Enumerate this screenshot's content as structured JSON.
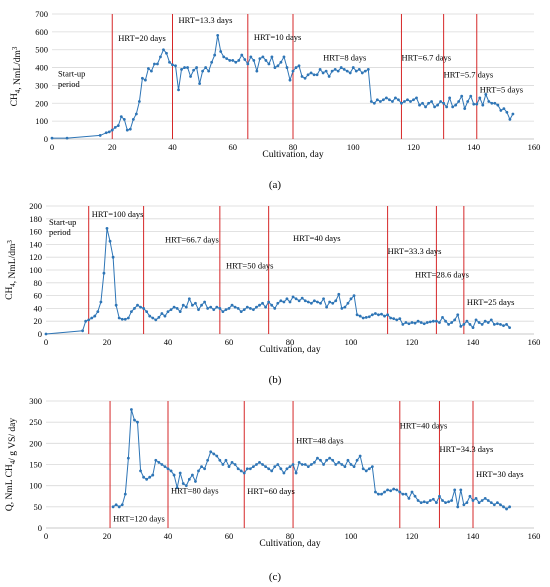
{
  "chart_data": [
    {
      "type": "line",
      "panel_label": "(a)",
      "xlabel": "Cultivation, day",
      "ylabel": "CH4, NmL/dm3",
      "xlim": [
        0,
        160
      ],
      "xticks": [
        0,
        20,
        40,
        60,
        80,
        100,
        120,
        140,
        160
      ],
      "ylim": [
        0,
        700
      ],
      "yticks": [
        0,
        100,
        200,
        300,
        400,
        500,
        600,
        700
      ],
      "grid": "horizontal",
      "color": "#2e75b6",
      "vlines": [
        20,
        40,
        65,
        80,
        116,
        130,
        141
      ],
      "annotations": [
        {
          "text": "Start-up",
          "x": 2,
          "y": 350
        },
        {
          "text": "period",
          "x": 2,
          "y": 290
        },
        {
          "text": "HRT=20 days",
          "x": 22,
          "y": 550
        },
        {
          "text": "HRT=13.3 days",
          "x": 42,
          "y": 650
        },
        {
          "text": "HRT=10 days",
          "x": 67,
          "y": 555
        },
        {
          "text": "HRT=8 days",
          "x": 90,
          "y": 440
        },
        {
          "text": "HRT=6.7 days",
          "x": 116,
          "y": 440
        },
        {
          "text": "HRT=5.7 days",
          "x": 130,
          "y": 345
        },
        {
          "text": "HRT=5 days",
          "x": 142,
          "y": 260
        }
      ],
      "x": [
        0,
        5,
        16,
        18,
        19,
        20,
        21,
        22,
        23,
        24,
        25,
        26,
        27,
        28,
        29,
        30,
        31,
        32,
        33,
        34,
        35,
        36,
        37,
        38,
        39,
        40,
        41,
        42,
        43,
        44,
        45,
        46,
        47,
        48,
        49,
        50,
        51,
        52,
        53,
        54,
        55,
        56,
        57,
        58,
        59,
        60,
        61,
        62,
        63,
        64,
        65,
        66,
        67,
        68,
        69,
        70,
        71,
        72,
        73,
        74,
        75,
        76,
        77,
        78,
        79,
        80,
        81,
        82,
        83,
        84,
        85,
        86,
        87,
        88,
        89,
        90,
        91,
        92,
        93,
        94,
        95,
        96,
        97,
        98,
        99,
        100,
        101,
        102,
        103,
        104,
        105,
        106,
        107,
        108,
        109,
        110,
        111,
        112,
        113,
        114,
        115,
        116,
        117,
        118,
        119,
        120,
        121,
        122,
        123,
        124,
        125,
        126,
        127,
        128,
        129,
        130,
        131,
        132,
        133,
        134,
        135,
        136,
        137,
        138,
        139,
        140,
        141,
        142,
        143,
        144,
        145,
        146,
        147,
        148,
        149,
        150,
        151,
        152,
        153
      ],
      "y": [
        5,
        5,
        20,
        35,
        40,
        50,
        65,
        75,
        125,
        110,
        50,
        55,
        110,
        140,
        210,
        340,
        330,
        395,
        380,
        420,
        420,
        460,
        500,
        480,
        430,
        415,
        410,
        275,
        390,
        400,
        400,
        350,
        385,
        400,
        310,
        380,
        400,
        380,
        430,
        470,
        580,
        490,
        460,
        450,
        440,
        440,
        430,
        440,
        470,
        445,
        420,
        460,
        440,
        380,
        450,
        460,
        440,
        420,
        460,
        400,
        410,
        430,
        460,
        400,
        330,
        380,
        400,
        410,
        350,
        340,
        360,
        370,
        360,
        360,
        390,
        370,
        380,
        350,
        380,
        390,
        380,
        400,
        390,
        380,
        370,
        400,
        380,
        390,
        370,
        380,
        390,
        210,
        200,
        220,
        210,
        220,
        230,
        220,
        210,
        230,
        220,
        200,
        210,
        220,
        210,
        220,
        230,
        190,
        200,
        180,
        200,
        210,
        180,
        190,
        210,
        200,
        180,
        230,
        180,
        190,
        210,
        240,
        170,
        210,
        240,
        195,
        195,
        230,
        190,
        250,
        210,
        200,
        200,
        190,
        160,
        170,
        150,
        110,
        140
      ]
    },
    {
      "type": "line",
      "panel_label": "(b)",
      "xlabel": "Cultivation, day",
      "ylabel": "CH4, NmL/dm3",
      "xlim": [
        0,
        160
      ],
      "xticks": [
        0,
        20,
        40,
        60,
        80,
        100,
        120,
        140,
        160
      ],
      "ylim": [
        0,
        200
      ],
      "yticks": [
        0,
        20,
        40,
        60,
        80,
        100,
        120,
        140,
        160,
        180,
        200
      ],
      "grid": "horizontal",
      "color": "#2e75b6",
      "vlines": [
        14,
        32,
        57,
        73,
        112,
        128,
        137
      ],
      "annotations": [
        {
          "text": "HRT=100 days",
          "x": 15,
          "y": 183
        },
        {
          "text": "Start-up",
          "x": 1,
          "y": 170
        },
        {
          "text": "period",
          "x": 1,
          "y": 155
        },
        {
          "text": "HRT=66.7 days",
          "x": 39,
          "y": 143
        },
        {
          "text": "HRT=50 days",
          "x": 59,
          "y": 102
        },
        {
          "text": "HRT=40 days",
          "x": 81,
          "y": 145
        },
        {
          "text": "HRT=33.3 days",
          "x": 112,
          "y": 125
        },
        {
          "text": "HRT=28.6 days",
          "x": 121,
          "y": 88
        },
        {
          "text": "HRT=25 days",
          "x": 138,
          "y": 45
        }
      ],
      "x": [
        0,
        12,
        13,
        14,
        15,
        16,
        17,
        18,
        19,
        20,
        21,
        22,
        23,
        24,
        25,
        26,
        27,
        28,
        29,
        30,
        31,
        32,
        33,
        34,
        35,
        36,
        37,
        38,
        39,
        40,
        41,
        42,
        43,
        44,
        45,
        46,
        47,
        48,
        49,
        50,
        51,
        52,
        53,
        54,
        55,
        56,
        57,
        58,
        59,
        60,
        61,
        62,
        63,
        64,
        65,
        66,
        67,
        68,
        69,
        70,
        71,
        72,
        73,
        74,
        75,
        76,
        77,
        78,
        79,
        80,
        81,
        82,
        83,
        84,
        85,
        86,
        87,
        88,
        89,
        90,
        91,
        92,
        93,
        94,
        95,
        96,
        97,
        98,
        99,
        100,
        101,
        102,
        103,
        104,
        105,
        106,
        107,
        108,
        109,
        110,
        111,
        112,
        113,
        114,
        115,
        116,
        117,
        118,
        119,
        120,
        121,
        122,
        123,
        124,
        125,
        126,
        127,
        128,
        129,
        130,
        131,
        132,
        133,
        134,
        135,
        136,
        137,
        138,
        139,
        140,
        141,
        142,
        143,
        144,
        145,
        146,
        147,
        148,
        149,
        150,
        151,
        152
      ],
      "y": [
        0,
        5,
        20,
        22,
        25,
        28,
        35,
        50,
        95,
        165,
        145,
        120,
        45,
        25,
        23,
        23,
        25,
        35,
        40,
        45,
        42,
        40,
        35,
        28,
        25,
        22,
        26,
        32,
        28,
        35,
        38,
        42,
        40,
        35,
        45,
        42,
        55,
        45,
        48,
        38,
        45,
        50,
        40,
        42,
        38,
        42,
        40,
        35,
        38,
        40,
        45,
        42,
        40,
        35,
        38,
        42,
        40,
        38,
        42,
        45,
        48,
        42,
        50,
        45,
        40,
        48,
        52,
        50,
        55,
        50,
        58,
        55,
        52,
        56,
        52,
        50,
        48,
        52,
        50,
        48,
        55,
        42,
        50,
        48,
        52,
        62,
        40,
        42,
        48,
        55,
        60,
        30,
        28,
        25,
        26,
        27,
        30,
        32,
        30,
        31,
        28,
        30,
        25,
        24,
        22,
        24,
        15,
        18,
        16,
        18,
        17,
        20,
        18,
        16,
        18,
        19,
        20,
        20,
        18,
        26,
        20,
        15,
        18,
        22,
        30,
        12,
        15,
        20,
        15,
        10,
        22,
        18,
        15,
        20,
        18,
        22,
        15,
        16,
        15,
        13,
        15,
        10
      ]
    },
    {
      "type": "line",
      "panel_label": "(c)",
      "xlabel": "Cultivation, day",
      "ylabel": "Q, NmL CH4/ g VS/ day",
      "xlim": [
        0,
        160
      ],
      "xticks": [
        0,
        20,
        40,
        60,
        80,
        100,
        120,
        140,
        160
      ],
      "ylim": [
        0,
        300
      ],
      "yticks": [
        0,
        50,
        100,
        150,
        200,
        250,
        300
      ],
      "grid": "horizontal",
      "color": "#2e75b6",
      "vlines": [
        21,
        40,
        65,
        81,
        116,
        129,
        140
      ],
      "annotations": [
        {
          "text": "HRT=120 days",
          "x": 22,
          "y": 15
        },
        {
          "text": "HRT=80 days",
          "x": 41,
          "y": 82
        },
        {
          "text": "HRT=60 days",
          "x": 66,
          "y": 80
        },
        {
          "text": "HRT=48 days",
          "x": 82,
          "y": 200
        },
        {
          "text": "HRT=40 days",
          "x": 116,
          "y": 235
        },
        {
          "text": "HRT=34.3 days",
          "x": 129,
          "y": 180
        },
        {
          "text": "HRT=30 days",
          "x": 141,
          "y": 120
        }
      ],
      "x": [
        22,
        23,
        24,
        25,
        26,
        27,
        28,
        29,
        30,
        31,
        32,
        33,
        34,
        35,
        36,
        37,
        38,
        39,
        40,
        41,
        42,
        43,
        44,
        45,
        46,
        47,
        48,
        49,
        50,
        51,
        52,
        53,
        54,
        55,
        56,
        57,
        58,
        59,
        60,
        61,
        62,
        63,
        64,
        65,
        66,
        67,
        68,
        69,
        70,
        71,
        72,
        73,
        74,
        75,
        76,
        77,
        78,
        79,
        80,
        81,
        82,
        83,
        84,
        85,
        86,
        87,
        88,
        89,
        90,
        91,
        92,
        93,
        94,
        95,
        96,
        97,
        98,
        99,
        100,
        101,
        102,
        103,
        104,
        105,
        106,
        107,
        108,
        109,
        110,
        111,
        112,
        113,
        114,
        115,
        116,
        117,
        118,
        119,
        120,
        121,
        122,
        123,
        124,
        125,
        126,
        127,
        128,
        129,
        130,
        131,
        132,
        133,
        134,
        135,
        136,
        137,
        138,
        139,
        140,
        141,
        142,
        143,
        144,
        145,
        146,
        147,
        148,
        149,
        150,
        151,
        152
      ],
      "y": [
        50,
        55,
        50,
        55,
        80,
        165,
        280,
        255,
        250,
        135,
        120,
        115,
        120,
        125,
        160,
        155,
        150,
        145,
        140,
        135,
        125,
        95,
        130,
        105,
        100,
        115,
        125,
        110,
        135,
        145,
        140,
        160,
        180,
        175,
        170,
        160,
        150,
        160,
        145,
        155,
        150,
        140,
        135,
        130,
        140,
        140,
        145,
        150,
        155,
        150,
        145,
        140,
        135,
        145,
        150,
        140,
        130,
        140,
        145,
        150,
        130,
        155,
        150,
        150,
        145,
        150,
        155,
        165,
        160,
        150,
        160,
        165,
        160,
        150,
        155,
        150,
        145,
        160,
        150,
        145,
        160,
        170,
        140,
        135,
        140,
        145,
        85,
        80,
        80,
        85,
        90,
        88,
        92,
        90,
        85,
        80,
        80,
        70,
        85,
        75,
        65,
        60,
        62,
        60,
        65,
        68,
        60,
        75,
        65,
        60,
        62,
        65,
        90,
        50,
        90,
        55,
        60,
        75,
        65,
        70,
        60,
        65,
        70,
        65,
        60,
        55,
        60,
        55,
        50,
        45,
        50
      ]
    }
  ]
}
